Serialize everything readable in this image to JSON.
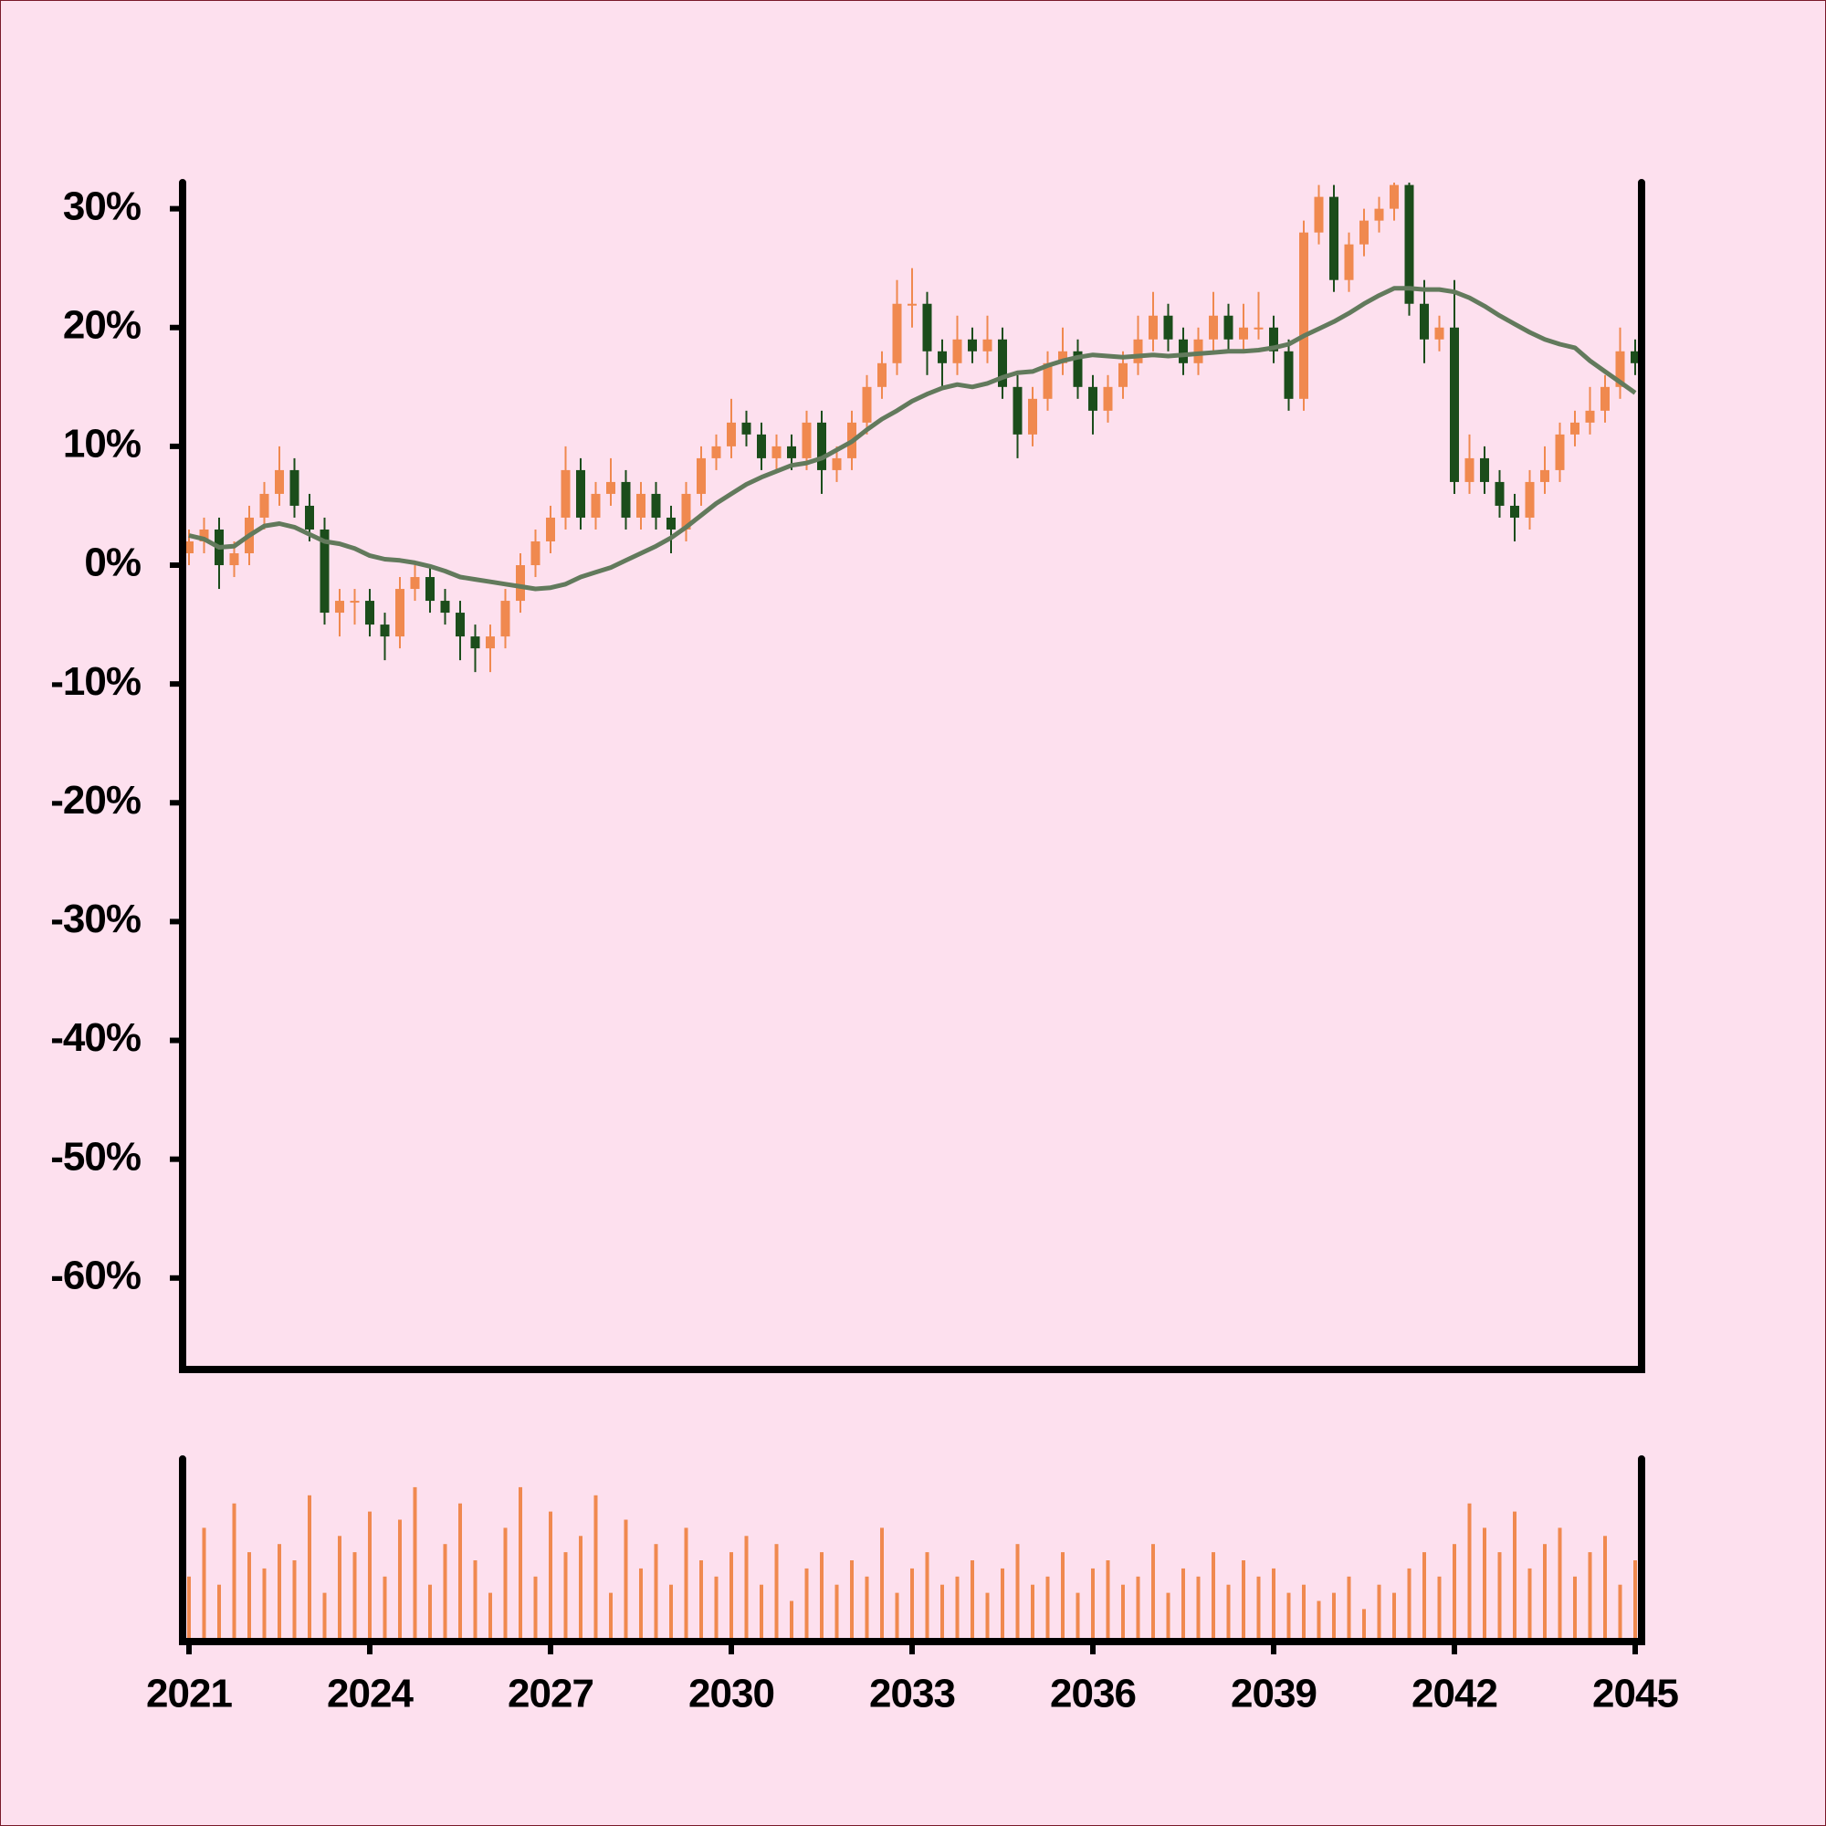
{
  "chart_data": {
    "type": "candlestick",
    "x": [
      2021,
      2021.25,
      2021.5,
      2021.75,
      2022,
      2022.25,
      2022.5,
      2022.75,
      2023,
      2023.25,
      2023.5,
      2023.75,
      2024,
      2024.25,
      2024.5,
      2024.75,
      2025,
      2025.25,
      2025.5,
      2025.75,
      2026,
      2026.25,
      2026.5,
      2026.75,
      2027,
      2027.25,
      2027.5,
      2027.75,
      2028,
      2028.25,
      2028.5,
      2028.75,
      2029,
      2029.25,
      2029.5,
      2029.75,
      2030,
      2030.25,
      2030.5,
      2030.75,
      2031,
      2031.25,
      2031.5,
      2031.75,
      2032,
      2032.25,
      2032.5,
      2032.75,
      2033,
      2033.25,
      2033.5,
      2033.75,
      2034,
      2034.25,
      2034.5,
      2034.75,
      2035,
      2035.25,
      2035.5,
      2035.75,
      2036,
      2036.25,
      2036.5,
      2036.75,
      2037,
      2037.25,
      2037.5,
      2037.75,
      2038,
      2038.25,
      2038.5,
      2038.75,
      2039,
      2039.25,
      2039.5,
      2039.75,
      2040,
      2040.25,
      2040.5,
      2040.75,
      2041,
      2041.25,
      2041.5,
      2041.75,
      2042,
      2042.25,
      2042.5,
      2042.75,
      2043,
      2043.25,
      2043.5,
      2043.75,
      2044,
      2044.25,
      2044.5,
      2044.75,
      2045
    ],
    "open": [
      1,
      2,
      3,
      0,
      1,
      4,
      6,
      8,
      5,
      3,
      -4,
      -3,
      -3,
      -5,
      -6,
      -2,
      -1,
      -3,
      -4,
      -6,
      -7,
      -6,
      -3,
      0,
      2,
      4,
      8,
      4,
      6,
      7,
      4,
      6,
      4,
      3,
      6,
      9,
      10,
      12,
      11,
      9,
      10,
      9,
      12,
      8,
      9,
      12,
      15,
      17,
      22,
      22,
      18,
      17,
      19,
      18,
      19,
      15,
      11,
      14,
      17,
      18,
      15,
      13,
      15,
      17,
      19,
      21,
      19,
      17,
      19,
      21,
      19,
      20,
      20,
      18,
      14,
      28,
      31,
      24,
      27,
      29,
      30,
      32,
      22,
      19,
      20,
      7,
      9,
      7,
      5,
      4,
      7,
      8,
      11,
      12,
      13,
      15,
      18
    ],
    "high": [
      3,
      4,
      4,
      2,
      5,
      7,
      10,
      9,
      6,
      4,
      -2,
      -2,
      -2,
      -4,
      -1,
      0,
      0,
      -2,
      -3,
      -5,
      -5,
      -2,
      1,
      3,
      5,
      10,
      9,
      7,
      9,
      8,
      7,
      7,
      5,
      7,
      10,
      11,
      14,
      13,
      12,
      11,
      11,
      13,
      13,
      10,
      13,
      16,
      18,
      24,
      25,
      23,
      19,
      21,
      20,
      21,
      20,
      16,
      15,
      18,
      20,
      19,
      16,
      16,
      18,
      21,
      23,
      22,
      20,
      20,
      23,
      22,
      22,
      23,
      21,
      19,
      29,
      32,
      32,
      28,
      30,
      31,
      33,
      33,
      24,
      21,
      24,
      11,
      10,
      8,
      6,
      8,
      10,
      12,
      13,
      15,
      16,
      20,
      19
    ],
    "low": [
      0,
      1,
      -2,
      -1,
      0,
      3,
      5,
      4,
      2,
      -5,
      -6,
      -5,
      -6,
      -8,
      -7,
      -3,
      -4,
      -5,
      -8,
      -9,
      -9,
      -7,
      -4,
      -1,
      1,
      3,
      3,
      3,
      5,
      3,
      3,
      3,
      1,
      2,
      5,
      8,
      9,
      10,
      8,
      8,
      8,
      8,
      6,
      7,
      8,
      11,
      14,
      16,
      20,
      16,
      15,
      16,
      17,
      17,
      14,
      9,
      10,
      13,
      16,
      14,
      11,
      12,
      14,
      16,
      18,
      18,
      16,
      16,
      18,
      18,
      18,
      19,
      17,
      13,
      13,
      27,
      23,
      23,
      26,
      28,
      29,
      21,
      17,
      18,
      6,
      6,
      6,
      4,
      2,
      3,
      6,
      7,
      10,
      11,
      12,
      14,
      16
    ],
    "close": [
      2,
      3,
      0,
      1,
      4,
      6,
      8,
      5,
      3,
      -4,
      -3,
      -3,
      -5,
      -6,
      -2,
      -1,
      -3,
      -4,
      -6,
      -7,
      -6,
      -3,
      0,
      2,
      4,
      8,
      4,
      6,
      7,
      4,
      6,
      4,
      3,
      6,
      9,
      10,
      12,
      11,
      9,
      10,
      9,
      12,
      8,
      9,
      12,
      15,
      17,
      22,
      22,
      18,
      17,
      19,
      18,
      19,
      15,
      11,
      14,
      17,
      18,
      15,
      13,
      15,
      17,
      19,
      21,
      19,
      17,
      19,
      21,
      19,
      20,
      20,
      18,
      14,
      28,
      31,
      24,
      27,
      29,
      30,
      32,
      22,
      19,
      20,
      7,
      9,
      7,
      5,
      4,
      7,
      8,
      11,
      12,
      13,
      15,
      18,
      17
    ],
    "ma": [
      2.5,
      2.2,
      1.5,
      1.6,
      2.5,
      3.3,
      3.5,
      3.2,
      2.6,
      2.0,
      1.8,
      1.4,
      0.8,
      0.5,
      0.4,
      0.2,
      -0.1,
      -0.5,
      -1.0,
      -1.2,
      -1.4,
      -1.6,
      -1.8,
      -2.0,
      -1.9,
      -1.6,
      -1.0,
      -0.6,
      -0.2,
      0.4,
      1.0,
      1.6,
      2.3,
      3.2,
      4.2,
      5.2,
      6.0,
      6.8,
      7.4,
      7.9,
      8.4,
      8.6,
      9.0,
      9.7,
      10.4,
      11.4,
      12.3,
      13.0,
      13.8,
      14.4,
      14.9,
      15.2,
      15.0,
      15.3,
      15.8,
      16.2,
      16.3,
      16.8,
      17.2,
      17.5,
      17.7,
      17.6,
      17.5,
      17.6,
      17.7,
      17.6,
      17.7,
      17.8,
      17.9,
      18.0,
      18.0,
      18.1,
      18.3,
      18.6,
      19.3,
      19.9,
      20.5,
      21.2,
      22.0,
      22.7,
      23.3,
      23.3,
      23.2,
      23.2,
      23.0,
      22.5,
      21.8,
      21.0,
      20.3,
      19.6,
      19.0,
      18.6,
      18.3,
      17.2,
      16.3,
      15.4,
      14.5
    ],
    "volume": [
      40,
      70,
      35,
      85,
      55,
      45,
      60,
      50,
      90,
      30,
      65,
      55,
      80,
      40,
      75,
      95,
      35,
      60,
      85,
      50,
      30,
      70,
      95,
      40,
      80,
      55,
      65,
      90,
      30,
      75,
      45,
      60,
      35,
      70,
      50,
      40,
      55,
      65,
      35,
      60,
      25,
      45,
      55,
      35,
      50,
      40,
      70,
      30,
      45,
      55,
      35,
      40,
      50,
      30,
      45,
      60,
      35,
      40,
      55,
      30,
      45,
      50,
      35,
      40,
      60,
      30,
      45,
      40,
      55,
      35,
      50,
      40,
      45,
      30,
      35,
      25,
      30,
      40,
      20,
      35,
      30,
      45,
      55,
      40,
      60,
      85,
      70,
      55,
      80,
      45,
      60,
      70,
      40,
      55,
      65,
      35,
      50
    ],
    "up_color": "#f0894f",
    "down_color": "#1b4d1b",
    "ma_color": "#627a5c",
    "volume_color": "#f0894f",
    "xlim": [
      2021,
      2045
    ],
    "xticks": [
      2021,
      2024,
      2027,
      2030,
      2033,
      2036,
      2039,
      2042,
      2045
    ],
    "ylim": [
      -67.7,
      32.2
    ],
    "yticks": [
      {
        "value": -60,
        "label": "-60%"
      },
      {
        "value": -50,
        "label": "-50%"
      },
      {
        "value": -40,
        "label": "-40%"
      },
      {
        "value": -30,
        "label": "-30%"
      },
      {
        "value": -20,
        "label": "-20%"
      },
      {
        "value": -10,
        "label": "-10%"
      },
      {
        "value": 0,
        "label": "0%"
      },
      {
        "value": 10,
        "label": "10%"
      },
      {
        "value": 20,
        "label": "20%"
      },
      {
        "value": 30,
        "label": "30%"
      }
    ],
    "volume_lim": [
      0,
      100
    ]
  }
}
